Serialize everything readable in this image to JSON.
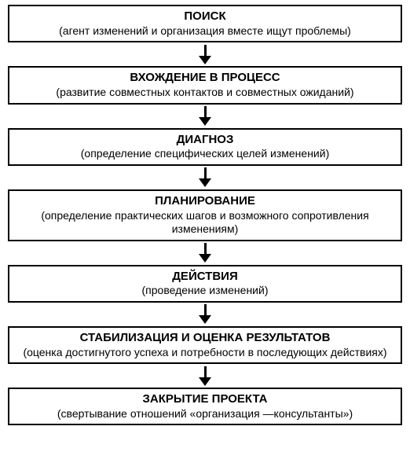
{
  "diagram": {
    "type": "flowchart",
    "direction": "vertical",
    "background_color": "#ffffff",
    "border_color": "#000000",
    "border_width": 2,
    "arrow_color": "#000000",
    "title_fontsize": 15,
    "title_fontweight": "bold",
    "subtitle_fontsize": 14,
    "text_color": "#000000",
    "nodes": [
      {
        "title": "ПОИСК",
        "subtitle": "(агент изменений и организация вместе ищут проблемы)"
      },
      {
        "title": "ВХОЖДЕНИЕ В ПРОЦЕСС",
        "subtitle": "(развитие совместных контактов и совместных ожиданий)"
      },
      {
        "title": "ДИАГНОЗ",
        "subtitle": "(определение специфических целей изменений)"
      },
      {
        "title": "ПЛАНИРОВАНИЕ",
        "subtitle": "(определение практических шагов и возможного сопротивления изменениям)"
      },
      {
        "title": "ДЕЙСТВИЯ",
        "subtitle": "(проведение изменений)"
      },
      {
        "title": "СТАБИЛИЗАЦИЯ И ОЦЕНКА РЕЗУЛЬТАТОВ",
        "subtitle": "(оценка достигнутого успеха и потребности в последующих действиях)"
      },
      {
        "title": "ЗАКРЫТИЕ ПРОЕКТА",
        "subtitle": "(свертывание отношений «организация —консультанты»)"
      }
    ]
  }
}
